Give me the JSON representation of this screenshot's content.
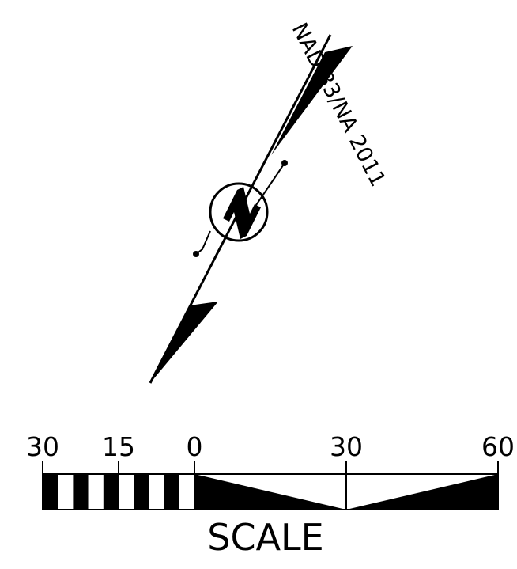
{
  "north_arrow": {
    "datum_label": "NAD 83/NA 2011",
    "north_symbol": "N",
    "icon": "north-arrow-icon"
  },
  "scale_bar": {
    "title": "SCALE",
    "ticks": [
      "30",
      "15",
      "0",
      "30",
      "60"
    ],
    "left_segments": 10,
    "colors": {
      "ink": "#000000",
      "paper": "#ffffff"
    }
  }
}
